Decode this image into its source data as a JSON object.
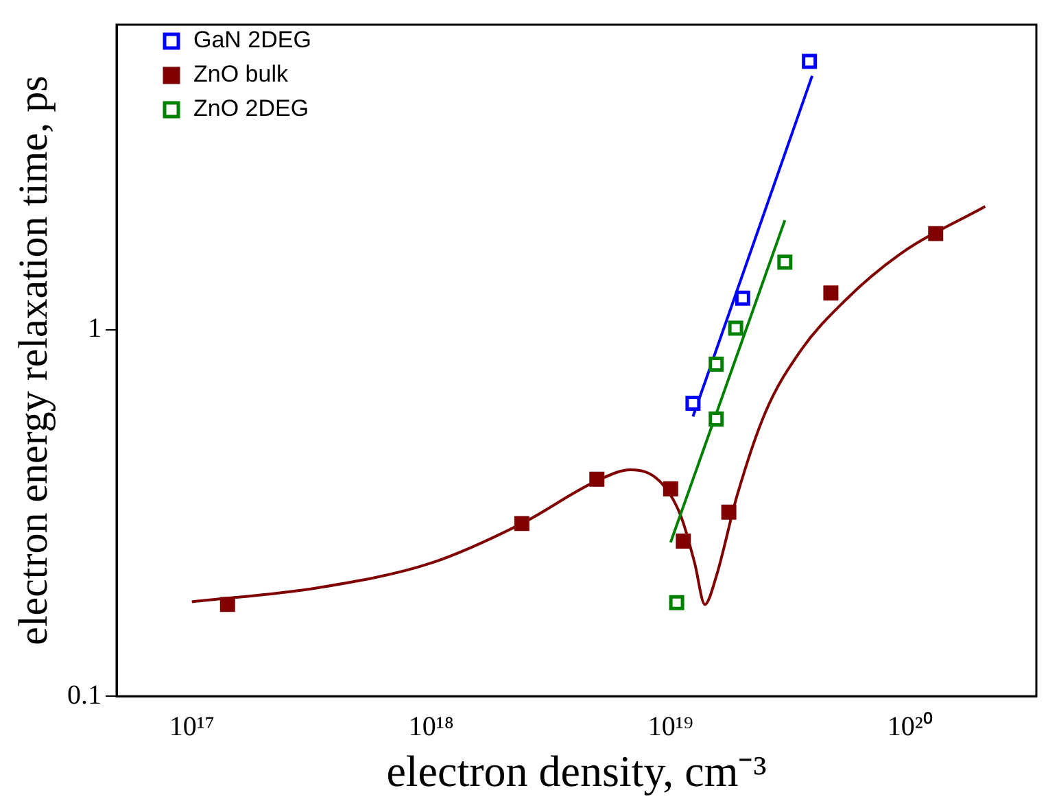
{
  "chart_data": {
    "type": "scatter",
    "xlabel": "electron density, cm⁻³",
    "ylabel": "electron energy relaxation time, ps",
    "log": "xy",
    "grid": false,
    "legend": "top left",
    "marker": "square",
    "xlim": [
      4.85e+16,
      3.37e+20
    ],
    "xticks": [
      {
        "value": 1e+17,
        "label": "10¹⁷"
      },
      {
        "value": 1e+18,
        "label": "10¹⁸"
      },
      {
        "value": 1e+19,
        "label": "10¹⁹"
      },
      {
        "value": 1e+20,
        "label": "10²⁰"
      }
    ],
    "ylim": [
      0.1,
      6.8
    ],
    "yticks": [
      {
        "value": 0.1,
        "label": "0.1"
      },
      {
        "value": 1,
        "label": "1"
      }
    ],
    "series": [
      {
        "name": "GaN 2DEG",
        "color": "#0000ff",
        "x": [
          1.24e+19,
          2e+19,
          3.8e+19
        ],
        "values": [
          0.63,
          1.22,
          5.4
        ]
      },
      {
        "name": "ZnO bulk",
        "color": "#800000",
        "marker": "square",
        "x": [
          1.41e+17,
          2.39e+18,
          4.92e+18,
          1e+19,
          1.13e+19,
          1.75e+19,
          4.67e+19,
          1.28e+20
        ],
        "values": [
          0.178,
          0.296,
          0.391,
          0.368,
          0.265,
          0.318,
          1.26,
          1.83
        ]
      },
      {
        "name": "ZnO 2DEG",
        "color": "#008000",
        "x": [
          1.06e+19,
          1.55e+19,
          1.55e+19,
          1.87e+19,
          3e+19
        ],
        "values": [
          0.18,
          0.571,
          0.806,
          1.01,
          1.53
        ]
      },
      {
        "type": "line",
        "marker": "none",
        "color": "#0000ff",
        "x": [
          1.24e+19,
          3.9e+19
        ],
        "values": [
          0.58,
          4.93
        ]
      },
      {
        "type": "line",
        "marker": "none",
        "color": "#008000",
        "x": [
          1e+19,
          3e+19
        ],
        "values": [
          0.263,
          1.99
        ]
      },
      {
        "type": "line",
        "marker": "none",
        "color": "#800000",
        "x": [
          1e+17,
          3.41e+17,
          1e+18,
          2.39e+18,
          4.92e+18,
          6.8e+18,
          8.97e+18,
          1.1e+19,
          1.26e+19,
          1.39e+19,
          1.55e+19,
          1.9e+19,
          2.49e+19,
          3.5e+19,
          5.27e+19,
          9.1e+19,
          2.06e+20
        ],
        "values": [
          0.181,
          0.198,
          0.231,
          0.296,
          0.387,
          0.415,
          0.387,
          0.312,
          0.231,
          0.178,
          0.212,
          0.355,
          0.596,
          0.879,
          1.19,
          1.61,
          2.17
        ]
      }
    ]
  }
}
